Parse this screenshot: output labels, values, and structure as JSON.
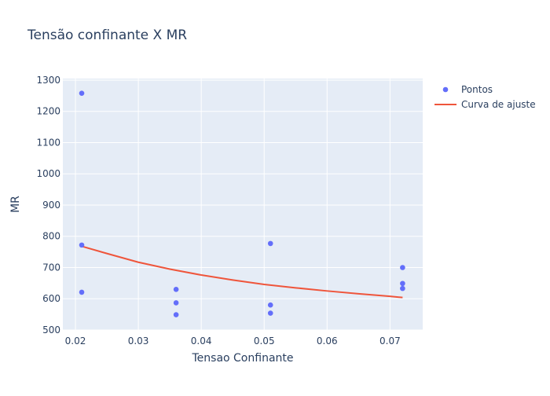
{
  "chart_data": {
    "type": "scatter",
    "title": "Tensão confinante X MR",
    "xlabel": "Tensao Confinante",
    "ylabel": "MR",
    "xlim": [
      0.018,
      0.0752
    ],
    "ylim": [
      500,
      1305
    ],
    "xticks": [
      0.02,
      0.03,
      0.04,
      0.05,
      0.06,
      0.07
    ],
    "xtick_labels": [
      "0.02",
      "0.03",
      "0.04",
      "0.05",
      "0.06",
      "0.07"
    ],
    "yticks": [
      500,
      600,
      700,
      800,
      900,
      1000,
      1100,
      1200,
      1300
    ],
    "ytick_labels": [
      "500",
      "600",
      "700",
      "800",
      "900",
      "1000",
      "1100",
      "1200",
      "1300"
    ],
    "grid": true,
    "legend_position": "top-right",
    "colors": {
      "plot_bg": "#E5ECF6",
      "grid": "#ffffff",
      "text": "#2a3f5f",
      "points": "#636EFA",
      "curve": "#EF553B"
    },
    "series": [
      {
        "name": "Pontos",
        "mode": "markers",
        "x": [
          0.021,
          0.021,
          0.021,
          0.036,
          0.036,
          0.036,
          0.051,
          0.051,
          0.051,
          0.072,
          0.072,
          0.072
        ],
        "y": [
          1258,
          772,
          621,
          630,
          587,
          549,
          777,
          580,
          554,
          700,
          649,
          633
        ]
      },
      {
        "name": "Curva de ajuste",
        "mode": "lines",
        "x": [
          0.021,
          0.025,
          0.03,
          0.035,
          0.04,
          0.045,
          0.05,
          0.055,
          0.06,
          0.065,
          0.07,
          0.072
        ],
        "y": [
          768,
          745,
          717,
          695,
          676,
          660,
          646,
          635,
          625,
          616,
          608,
          604
        ]
      }
    ]
  }
}
